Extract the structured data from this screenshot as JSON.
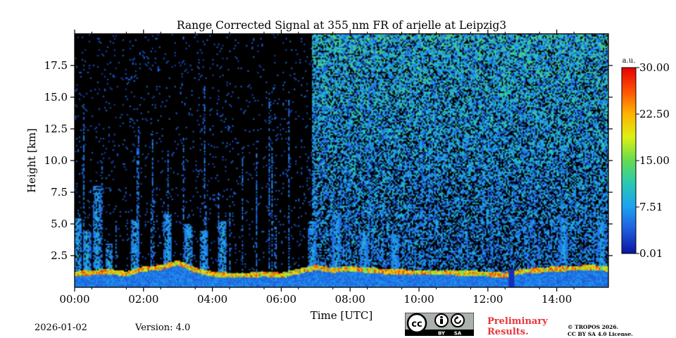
{
  "chart_data": {
    "type": "heatmap",
    "title": "Range Corrected Signal at 355 nm FR of arielle at Leipzig3",
    "xlabel": "Time [UTC]",
    "ylabel": "Height [km]",
    "xlim": [
      0,
      15.5
    ],
    "ylim": [
      0,
      20
    ],
    "x_ticks": [
      0,
      2,
      4,
      6,
      8,
      10,
      12,
      14
    ],
    "x_tick_labels": [
      "00:00",
      "02:00",
      "04:00",
      "06:00",
      "08:00",
      "10:00",
      "12:00",
      "14:00"
    ],
    "y_ticks": [
      2.5,
      5.0,
      7.5,
      10.0,
      12.5,
      15.0,
      17.5
    ],
    "y_tick_labels": [
      "2.5",
      "5.0",
      "7.5",
      "10.0",
      "12.5",
      "15.0",
      "17.5"
    ],
    "colorbar": {
      "unit": "a.u.",
      "min": 0.01,
      "max": 30.0,
      "ticks": [
        0.01,
        7.51,
        15.0,
        22.5,
        30.0
      ],
      "tick_labels": [
        "0.01",
        "7.51",
        "15.00",
        "22.50",
        "30.00"
      ],
      "colormap": [
        "#0a14a0",
        "#1e5adc",
        "#1ea0f0",
        "#28c8b4",
        "#64dc50",
        "#dcf014",
        "#ffb400",
        "#ff5000",
        "#e60000"
      ]
    },
    "boundary_layer_height_km": [
      [
        0,
        1.1
      ],
      [
        0.5,
        1.2
      ],
      [
        1,
        1.3
      ],
      [
        1.5,
        1.1
      ],
      [
        2,
        1.5
      ],
      [
        2.5,
        1.6
      ],
      [
        3,
        2.0
      ],
      [
        3.5,
        1.4
      ],
      [
        4,
        1.1
      ],
      [
        4.5,
        1.0
      ],
      [
        5,
        1.0
      ],
      [
        5.5,
        1.1
      ],
      [
        6,
        1.0
      ],
      [
        6.5,
        1.3
      ],
      [
        7,
        1.6
      ],
      [
        7.5,
        1.4
      ],
      [
        8,
        1.5
      ],
      [
        9,
        1.3
      ],
      [
        10,
        1.2
      ],
      [
        11,
        1.2
      ],
      [
        12,
        1.1
      ],
      [
        12.5,
        1.0
      ],
      [
        13,
        1.3
      ],
      [
        14,
        1.5
      ],
      [
        15,
        1.6
      ],
      [
        15.5,
        1.5
      ]
    ],
    "aerosol_plumes": [
      {
        "t": 0.1,
        "top": 5.5
      },
      {
        "t": 0.35,
        "top": 4.5
      },
      {
        "t": 0.65,
        "top": 8.0
      },
      {
        "t": 1.0,
        "top": 3.5
      },
      {
        "t": 1.75,
        "top": 5.3
      },
      {
        "t": 2.7,
        "top": 5.8
      },
      {
        "t": 3.3,
        "top": 5.0
      },
      {
        "t": 3.75,
        "top": 4.5
      },
      {
        "t": 4.3,
        "top": 5.2
      },
      {
        "t": 6.9,
        "top": 5.2
      },
      {
        "t": 7.6,
        "top": 6.0
      },
      {
        "t": 8.4,
        "top": 4.5
      },
      {
        "t": 9.3,
        "top": 4.2
      },
      {
        "t": 14.2,
        "top": 5.5
      },
      {
        "t": 15.3,
        "top": 5.8
      }
    ],
    "noise_transition_time_h": 6.9,
    "data_gap_time_h": 12.7
  },
  "footer": {
    "date": "2026-01-02",
    "version": "Version: 4.0",
    "license_badge": {
      "cc": "cc",
      "by": "BY",
      "sa": "SA"
    },
    "preliminary_line1": "Preliminary",
    "preliminary_line2": "Results.",
    "copyright_line1": "© TROPOS 2026.",
    "copyright_line2": "CC BY SA 4.0 License."
  }
}
